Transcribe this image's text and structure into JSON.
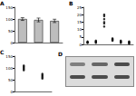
{
  "chart_data": [
    {
      "type": "bar",
      "title": "A",
      "categories": [
        null,
        null,
        null
      ],
      "values": [
        100,
        96,
        92
      ],
      "errors": [
        6,
        8,
        7
      ],
      "color": "#bdbdbd",
      "ylim": [
        0,
        150
      ],
      "yticks": [
        0,
        50,
        100,
        150
      ],
      "tick_labels": "y"
    },
    {
      "type": "scatter",
      "title": "B",
      "categories": [
        null,
        null,
        null,
        null,
        null,
        null
      ],
      "values": [
        [
          1,
          1.5,
          2,
          1.2
        ],
        [
          2,
          1.5,
          2.5,
          1
        ],
        [
          14,
          17,
          19,
          15,
          12,
          20
        ],
        [
          3,
          4,
          2.5,
          3.5
        ],
        [
          1.5,
          2,
          1,
          2.5
        ],
        [
          1,
          2,
          1.5,
          0.5
        ]
      ],
      "color": "#000000",
      "ylim": [
        0,
        25
      ],
      "yticks": [
        0,
        5,
        10,
        15,
        20,
        25
      ],
      "tick_labels": "y"
    },
    {
      "type": "scatter",
      "title": "C",
      "categories": [
        null,
        null
      ],
      "values": [
        [
          100,
          95,
          110,
          105,
          90
        ],
        [
          60,
          70,
          55,
          65,
          75
        ]
      ],
      "color": "#000000",
      "ylim": [
        0,
        150
      ],
      "yticks": [
        0,
        50,
        100,
        150
      ],
      "tick_labels": "y"
    }
  ],
  "blot": {
    "title": "D",
    "rows": 2,
    "lanes": 3
  }
}
